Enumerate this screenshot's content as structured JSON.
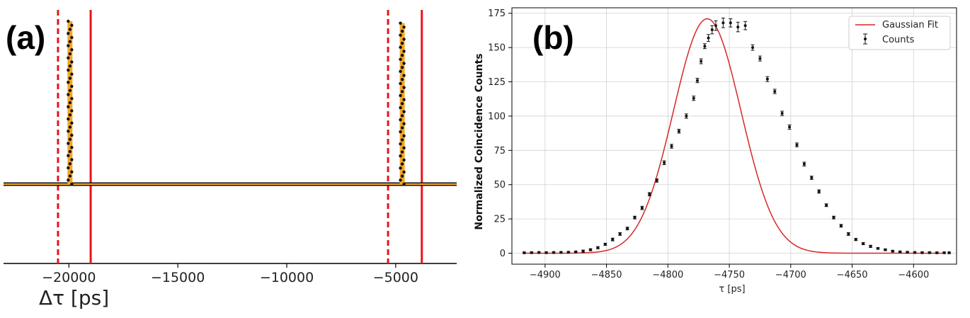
{
  "panels": {
    "a": {
      "label": "(a)",
      "xlabel": "Δτ [ps]",
      "xticks": [
        -20000,
        -15000,
        -10000,
        -5000
      ],
      "xtick_labels": [
        "−20000",
        "−15000",
        "−10000",
        "−5000"
      ]
    },
    "b": {
      "label": "(b)",
      "xlabel": "τ [ps]",
      "ylabel": "Normalized Coincidence Counts",
      "xticks": [
        -4900,
        -4850,
        -4800,
        -4750,
        -4700,
        -4650,
        -4600
      ],
      "xtick_labels": [
        "−4900",
        "−4850",
        "−4800",
        "−4750",
        "−4700",
        "−4650",
        "−4600"
      ],
      "yticks": [
        0,
        25,
        50,
        75,
        100,
        125,
        150,
        175
      ],
      "ytick_labels": [
        "0",
        "25",
        "50",
        "75",
        "100",
        "125",
        "150",
        "175"
      ],
      "legend": {
        "fit": "Gaussian Fit",
        "counts": "Counts"
      }
    }
  },
  "colors": {
    "fit_red": "#d62728",
    "marker_red": "#e8141a",
    "fit_orange": "#f5a623",
    "points": "#111111",
    "grid": "#d0d0d0"
  },
  "chart_data": [
    {
      "type": "scatter",
      "panel": "a",
      "xlabel": "Δτ [ps]",
      "xlim": [
        -23000,
        -2200
      ],
      "grid": false,
      "peaks": [
        {
          "center": -19950,
          "height": 173
        },
        {
          "center": -4700,
          "height": 171
        }
      ],
      "baseline": 0,
      "vertical_lines": [
        {
          "x": -20500,
          "style": "dashed",
          "color": "red"
        },
        {
          "x": -19000,
          "style": "solid",
          "color": "red"
        },
        {
          "x": -5350,
          "style": "dashed",
          "color": "red"
        },
        {
          "x": -3800,
          "style": "solid",
          "color": "red"
        }
      ]
    },
    {
      "type": "scatter",
      "panel": "b",
      "xlabel": "τ [ps]",
      "ylabel": "Normalized Coincidence Counts",
      "xlim": [
        -4927,
        -4565
      ],
      "ylim": [
        -8,
        179
      ],
      "grid": true,
      "legend_position": "top-right",
      "series": [
        {
          "name": "Gaussian Fit",
          "kind": "line",
          "amplitude": 171,
          "center": -4768,
          "sigma": 27.5,
          "x_range": [
            -4917,
            -4575
          ]
        },
        {
          "name": "Counts",
          "kind": "errorbar",
          "x": [
            -4917,
            -4911,
            -4905,
            -4899,
            -4893,
            -4887,
            -4881,
            -4875,
            -4869,
            -4863,
            -4857,
            -4851,
            -4845,
            -4839,
            -4833,
            -4827,
            -4821,
            -4815,
            -4809,
            -4803,
            -4797,
            -4791,
            -4785,
            -4779,
            -4776,
            -4773,
            -4770,
            -4767,
            -4764,
            -4761,
            -4755,
            -4749,
            -4743,
            -4737,
            -4731,
            -4725,
            -4719,
            -4713,
            -4707,
            -4701,
            -4695,
            -4689,
            -4683,
            -4677,
            -4671,
            -4665,
            -4659,
            -4653,
            -4647,
            -4641,
            -4635,
            -4629,
            -4623,
            -4617,
            -4611,
            -4605,
            -4599,
            -4593,
            -4587,
            -4581,
            -4575,
            -4571
          ],
          "y": [
            0.3,
            0.4,
            0.5,
            0.4,
            0.5,
            0.6,
            0.7,
            1.0,
            1.5,
            2.5,
            4.0,
            6.5,
            10,
            14,
            18,
            26,
            33,
            43,
            53,
            66,
            78,
            89,
            100,
            113,
            126,
            140,
            151,
            157,
            163,
            166,
            168,
            168,
            165,
            166,
            150,
            142,
            127,
            118,
            102,
            92,
            79,
            65,
            55,
            45,
            35,
            26,
            20,
            14,
            10,
            7,
            5,
            3.5,
            2.5,
            1.5,
            1.0,
            0.7,
            0.5,
            0.4,
            0.4,
            0.3,
            0.3,
            0.3
          ],
          "err": [
            0.6,
            0.6,
            0.6,
            0.6,
            0.6,
            0.6,
            0.6,
            0.6,
            0.8,
            0.8,
            0.8,
            0.8,
            1.0,
            1.0,
            1.0,
            1.0,
            1.2,
            1.2,
            1.2,
            1.4,
            1.4,
            1.4,
            1.6,
            1.6,
            1.6,
            1.8,
            1.8,
            2.5,
            3.0,
            3.5,
            3.5,
            3.0,
            3.5,
            3.0,
            2.0,
            1.8,
            1.8,
            1.6,
            1.6,
            1.6,
            1.4,
            1.4,
            1.2,
            1.2,
            1.0,
            1.0,
            1.0,
            1.0,
            0.8,
            0.8,
            0.8,
            0.6,
            0.6,
            0.6,
            0.6,
            0.6,
            0.6,
            0.6,
            0.6,
            0.6,
            0.6,
            0.6
          ]
        }
      ]
    }
  ]
}
